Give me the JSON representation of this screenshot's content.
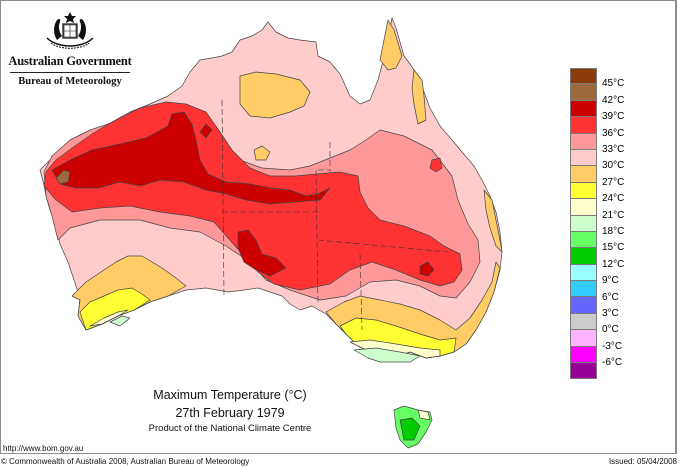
{
  "header": {
    "government": "Australian Government",
    "bureau": "Bureau of Meteorology"
  },
  "map": {
    "title": "Maximum Temperature (°C)",
    "date": "27th February 1979",
    "product": "Product of the National Climate Centre",
    "region": "Australia"
  },
  "legend": {
    "unit": "°C",
    "swatches": [
      {
        "color": "#8b3a0a",
        "label": "45°C"
      },
      {
        "color": "#9c6a3c",
        "label": "42°C"
      },
      {
        "color": "#cc0000",
        "label": "39°C"
      },
      {
        "color": "#ff3333",
        "label": "36°C"
      },
      {
        "color": "#ff9999",
        "label": "33°C"
      },
      {
        "color": "#ffcccc",
        "label": "30°C"
      },
      {
        "color": "#ffcc66",
        "label": "27°C"
      },
      {
        "color": "#ffff33",
        "label": "24°C"
      },
      {
        "color": "#ffffcc",
        "label": "21°C"
      },
      {
        "color": "#ccffcc",
        "label": "18°C"
      },
      {
        "color": "#66ff66",
        "label": "15°C"
      },
      {
        "color": "#00cc00",
        "label": "12°C"
      },
      {
        "color": "#99ffff",
        "label": "9°C"
      },
      {
        "color": "#33ccff",
        "label": "6°C"
      },
      {
        "color": "#6666ff",
        "label": "3°C"
      },
      {
        "color": "#cccccc",
        "label": "0°C"
      },
      {
        "color": "#ffb3ff",
        "label": "-3°C"
      },
      {
        "color": "#ff00ff",
        "label": "-6°C"
      },
      {
        "color": "#990099",
        "label": ""
      }
    ]
  },
  "footer": {
    "url": "http://www.bom.gov.au",
    "copyright": "© Commonwealth of Australia 2008, Australian Bureau of Meteorology",
    "issued": "Issued: 05/04/2008"
  }
}
